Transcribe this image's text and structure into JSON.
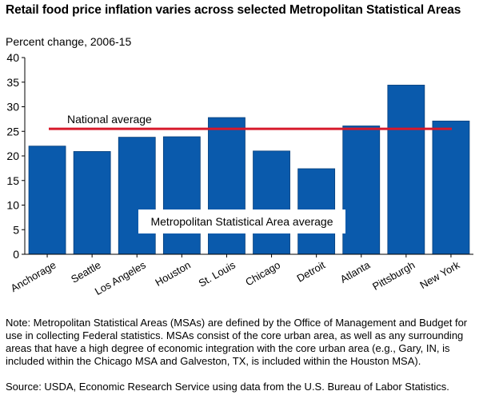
{
  "title": "Retail food price inflation varies across selected Metropolitan Statistical Areas",
  "note": "Note: Metropolitan Statistical Areas (MSAs) are defined by the Office of Management and Budget for use in collecting Federal statistics. MSAs consist of the core urban area, as well as any surrounding areas that have a high degree of economic integration with the core urban area (e.g., Gary, IN, is included within the Chicago MSA and Galveston, TX, is included within the Houston MSA).",
  "source": "Source: USDA, Economic Research Service using data from the U.S. Bureau of Labor Statistics.",
  "colors": {
    "bar": "#0a5aac",
    "bar_edge": "#063e7a",
    "average_line": "#d7192b"
  },
  "chart_data": {
    "type": "bar",
    "ylabel": "Percent change, 2006-15",
    "xlabel": "",
    "ylim": [
      0,
      40
    ],
    "yticks": [
      0,
      5,
      10,
      15,
      20,
      25,
      30,
      35,
      40
    ],
    "grid": false,
    "categories": [
      "Anchorage",
      "Seattle",
      "Los Angeles",
      "Houston",
      "St. Louis",
      "Chicago",
      "Detroit",
      "Atlanta",
      "Pittsburgh",
      "New York"
    ],
    "values": [
      22.0,
      20.9,
      23.8,
      23.9,
      27.8,
      21.0,
      17.4,
      26.1,
      34.4,
      27.1
    ],
    "reference_line": {
      "label": "National average",
      "value": 25.5
    },
    "annotation": "Metropolitan Statistical Area average"
  }
}
